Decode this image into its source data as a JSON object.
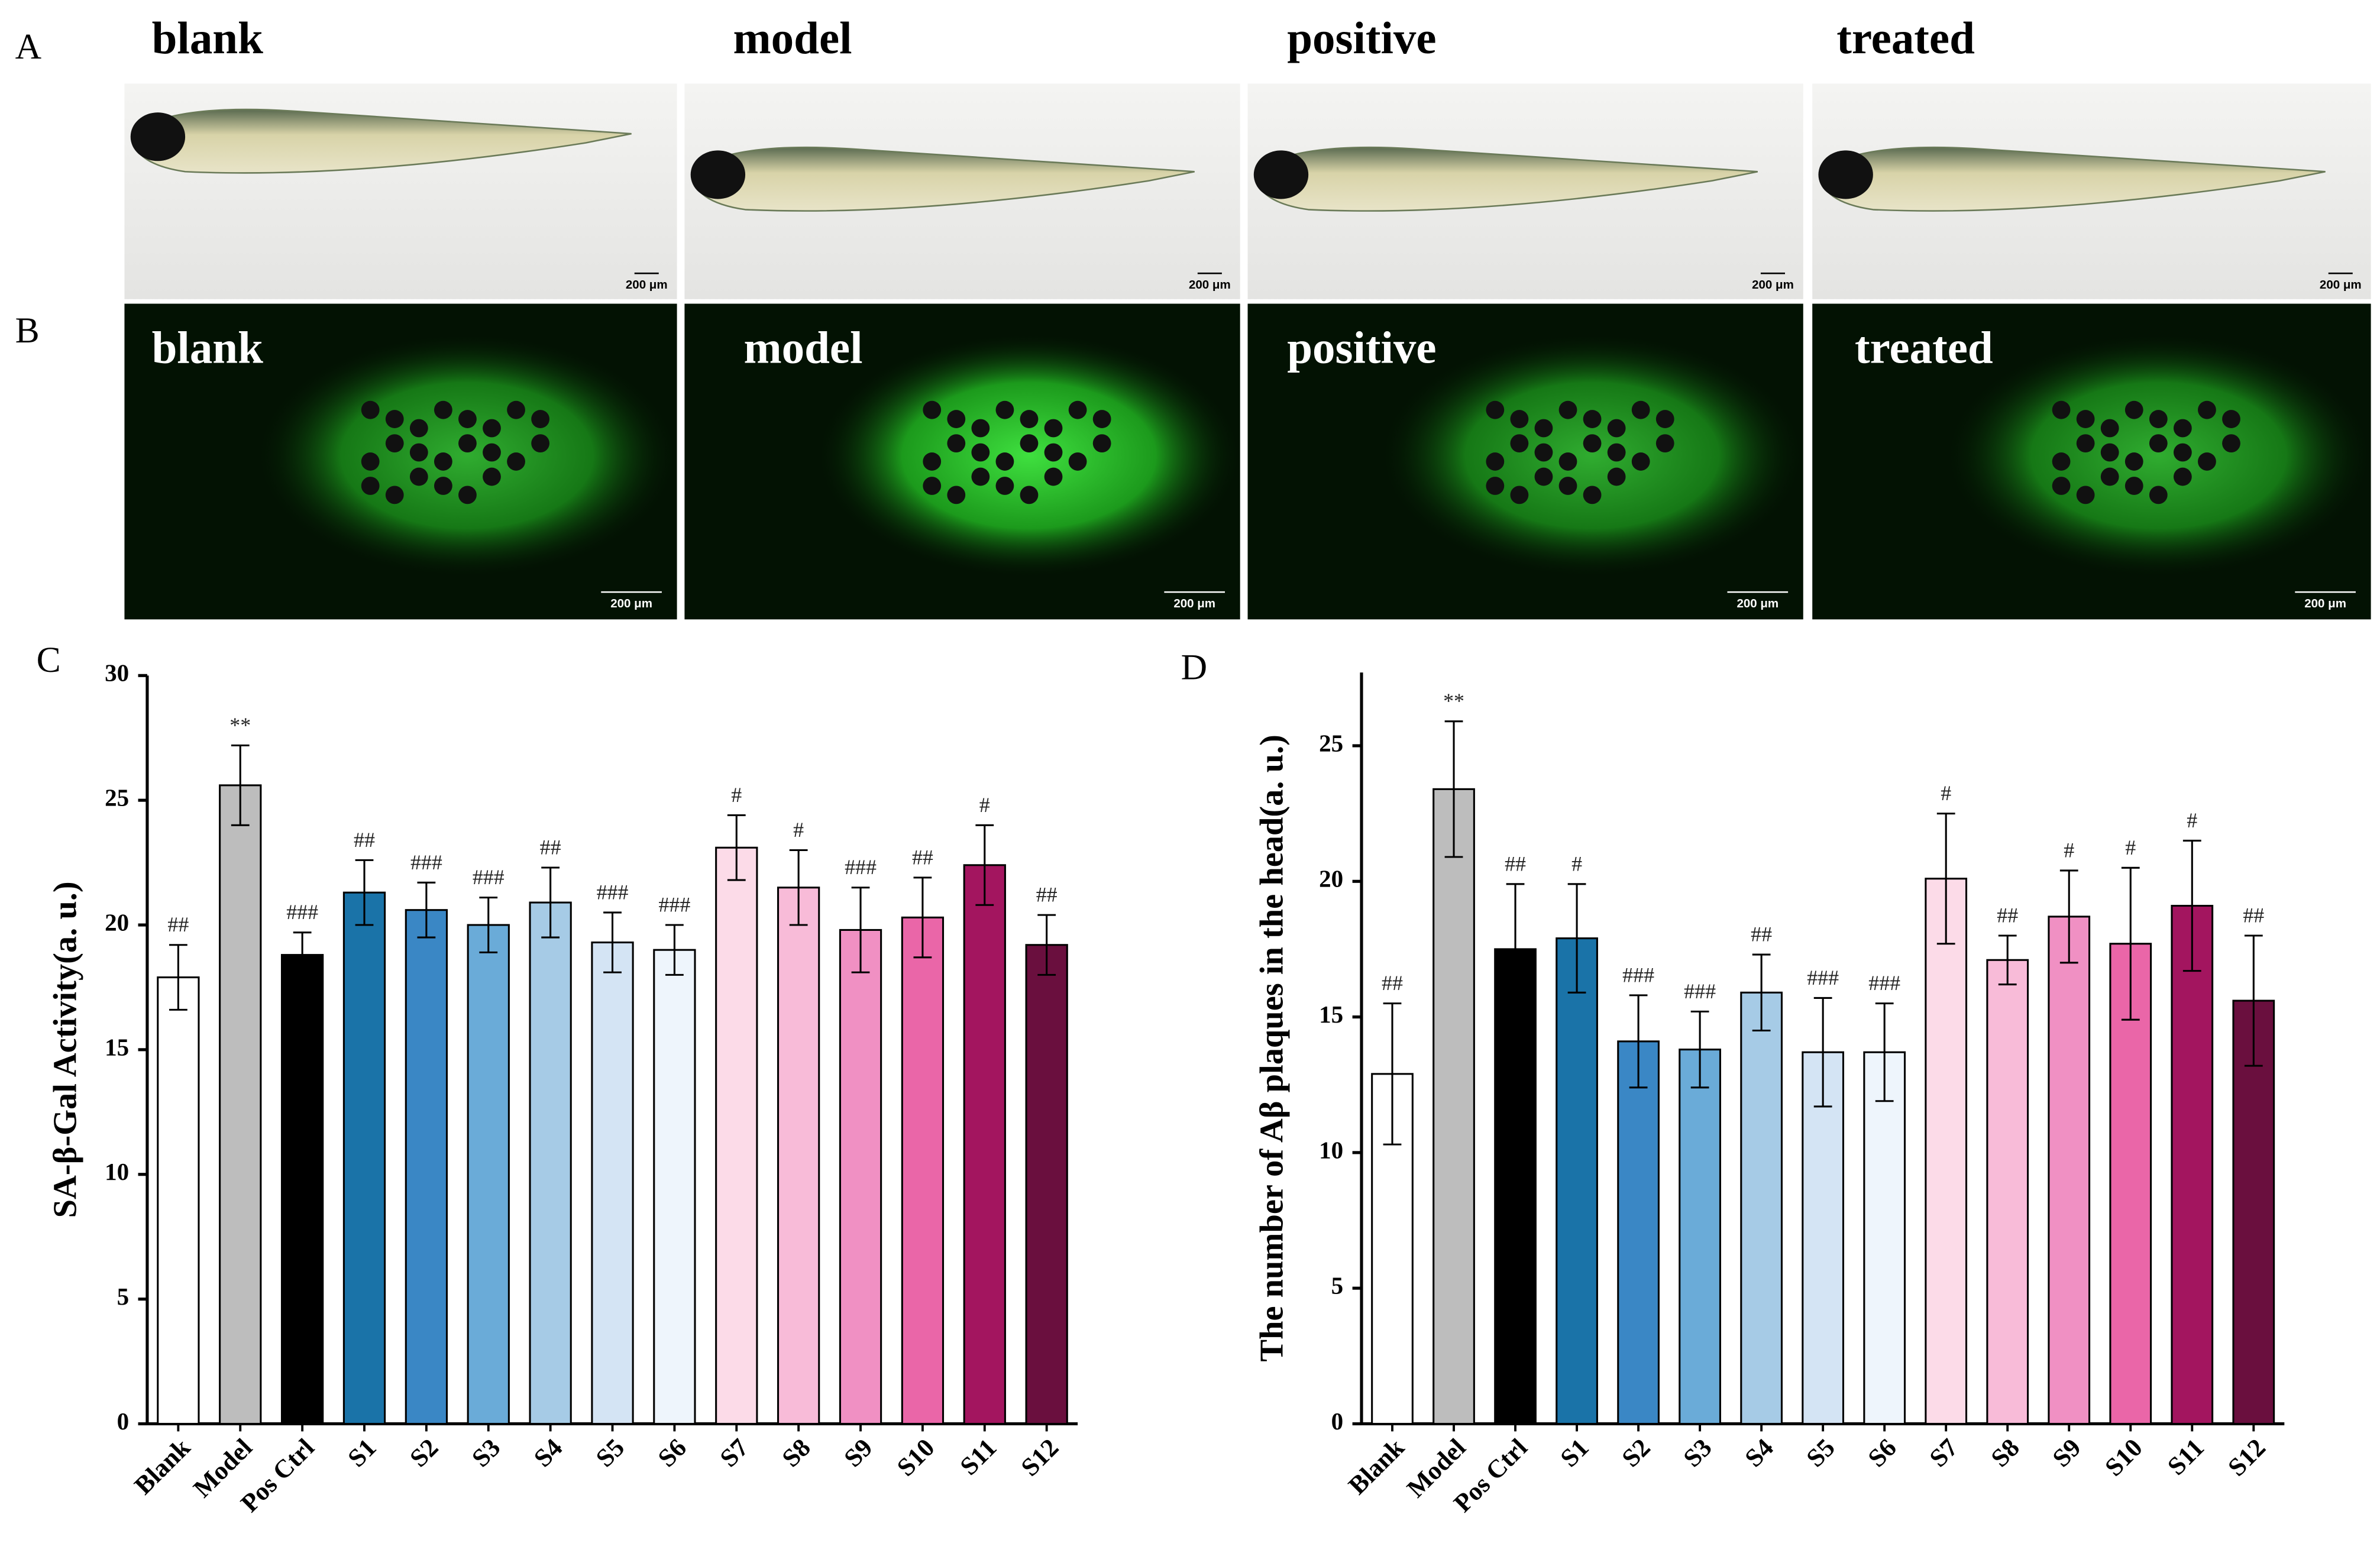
{
  "panel_labels": [
    "A",
    "B",
    "C",
    "D"
  ],
  "photo_rows": [
    {
      "groups": [
        "blank",
        "model",
        "positive",
        "treated"
      ]
    },
    {
      "groups": [
        "blank",
        "model",
        "positive",
        "treated"
      ]
    }
  ],
  "scale_bar": "200 μm",
  "chart_data": [
    {
      "type": "bar",
      "ylabel": "SA-β-Gal Activity(a. u.)",
      "categories": [
        "Blank",
        "Model",
        "Pos Ctrl",
        "S1",
        "S2",
        "S3",
        "S4",
        "S5",
        "S6",
        "S7",
        "S8",
        "S9",
        "S10",
        "S11",
        "S12"
      ],
      "values": [
        17.9,
        25.6,
        18.8,
        21.3,
        20.6,
        20.0,
        20.9,
        19.3,
        19.0,
        23.1,
        21.5,
        19.8,
        20.3,
        22.4,
        19.2
      ],
      "errors": [
        1.3,
        1.6,
        0.9,
        1.3,
        1.1,
        1.1,
        1.4,
        1.2,
        1.0,
        1.3,
        1.5,
        1.7,
        1.6,
        1.6,
        1.2
      ],
      "annotations": [
        "##",
        "**",
        "###",
        "##",
        "###",
        "###",
        "##",
        "###",
        "###",
        "#",
        "#",
        "###",
        "##",
        "#",
        "##"
      ],
      "colors": [
        "#ffffff",
        "#bdbdbd",
        "#000000",
        "#1a73a8",
        "#3a87c5",
        "#6aabd8",
        "#a6cbe6",
        "#d4e4f4",
        "#eef5fc",
        "#fcdbe8",
        "#f8bbd8",
        "#f090c3",
        "#ea66a8",
        "#a3155f",
        "#6a0f3e"
      ],
      "ylim": [
        0,
        30
      ],
      "yticks": [
        0,
        5,
        10,
        15,
        20,
        25,
        30
      ]
    },
    {
      "type": "bar",
      "ylabel": "The number of Aβ plaques in the head(a. u.)",
      "categories": [
        "Blank",
        "Model",
        "Pos Ctrl",
        "S1",
        "S2",
        "S3",
        "S4",
        "S5",
        "S6",
        "S7",
        "S8",
        "S9",
        "S10",
        "S11",
        "S12"
      ],
      "values": [
        12.9,
        23.4,
        17.5,
        17.9,
        14.1,
        13.8,
        15.9,
        13.7,
        13.7,
        20.1,
        17.1,
        18.7,
        17.7,
        19.1,
        15.6
      ],
      "errors": [
        2.6,
        2.5,
        2.4,
        2.0,
        1.7,
        1.4,
        1.4,
        2.0,
        1.8,
        2.4,
        0.9,
        1.7,
        2.8,
        2.4,
        2.4
      ],
      "annotations": [
        "##",
        "**",
        "##",
        "#",
        "###",
        "###",
        "##",
        "###",
        "###",
        "#",
        "##",
        "#",
        "#",
        "#",
        "##"
      ],
      "colors": [
        "#ffffff",
        "#bdbdbd",
        "#000000",
        "#1a73a8",
        "#3a87c5",
        "#6aabd8",
        "#a6cbe6",
        "#d4e4f4",
        "#eef5fc",
        "#fcdbe8",
        "#f8bbd8",
        "#f090c3",
        "#ea66a8",
        "#a3155f",
        "#6a0f3e"
      ],
      "ylim": [
        0,
        27.7
      ],
      "yticks": [
        0,
        5,
        10,
        15,
        20,
        25
      ]
    }
  ]
}
